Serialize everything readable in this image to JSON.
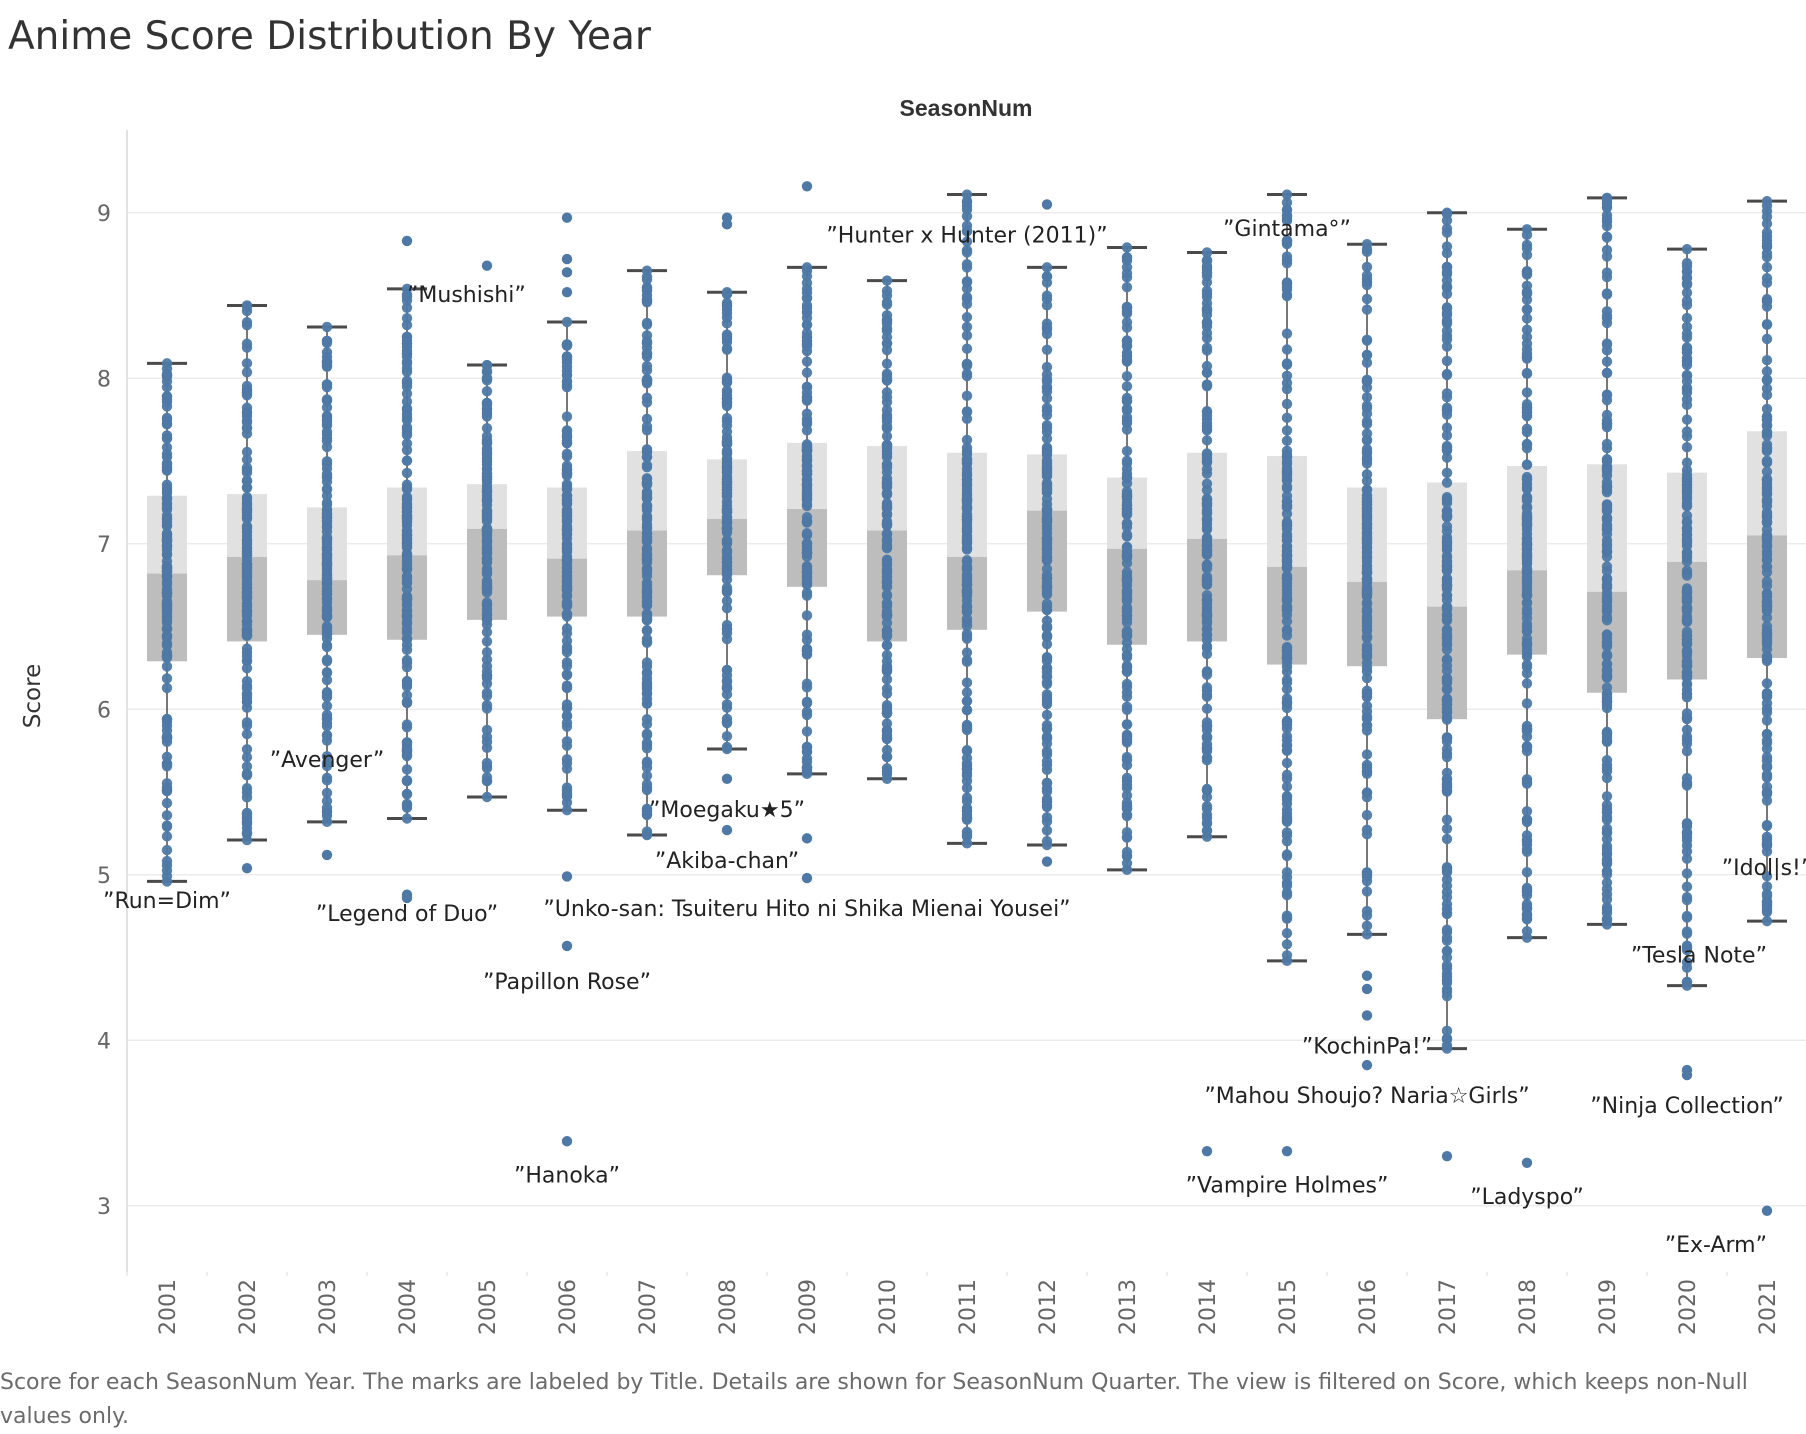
{
  "title": "Anime Score Distribution By Year",
  "caption": "Score for each SeasonNum Year.  The marks are labeled by Title.  Details are shown for SeasonNum Quarter. The view is filtered on Score, which keeps non-Null values only.",
  "colors": {
    "dot": "#4e79a7",
    "box_upper": "#e1e1e1",
    "box_lower": "#bdbdbd",
    "whisker": "#4a4a4a",
    "grid": "#ececec",
    "axis_text": "#666666"
  },
  "chart_data": {
    "type": "box",
    "title": "Anime Score Distribution By Year",
    "column_header": "SeasonNum",
    "ylabel": "Score",
    "ylim": [
      2.6,
      9.5
    ],
    "yticks": [
      3,
      4,
      5,
      6,
      7,
      8,
      9
    ],
    "grid": true,
    "categories": [
      "2001",
      "2002",
      "2003",
      "2004",
      "2005",
      "2006",
      "2007",
      "2008",
      "2009",
      "2010",
      "2011",
      "2012",
      "2013",
      "2014",
      "2015",
      "2016",
      "2017",
      "2018",
      "2019",
      "2020",
      "2021"
    ],
    "boxes": [
      {
        "year": "2001",
        "min": 4.96,
        "q1": 6.29,
        "median": 6.82,
        "q3": 7.29,
        "max": 8.09
      },
      {
        "year": "2002",
        "min": 5.21,
        "q1": 6.41,
        "median": 6.92,
        "q3": 7.3,
        "max": 8.44
      },
      {
        "year": "2003",
        "min": 5.32,
        "q1": 6.45,
        "median": 6.78,
        "q3": 7.22,
        "max": 8.31
      },
      {
        "year": "2004",
        "min": 5.34,
        "q1": 6.42,
        "median": 6.93,
        "q3": 7.34,
        "max": 8.54
      },
      {
        "year": "2005",
        "min": 5.47,
        "q1": 6.54,
        "median": 7.09,
        "q3": 7.36,
        "max": 8.08
      },
      {
        "year": "2006",
        "min": 5.39,
        "q1": 6.56,
        "median": 6.91,
        "q3": 7.34,
        "max": 8.34
      },
      {
        "year": "2007",
        "min": 5.24,
        "q1": 6.56,
        "median": 7.08,
        "q3": 7.56,
        "max": 8.65
      },
      {
        "year": "2008",
        "min": 5.76,
        "q1": 6.81,
        "median": 7.15,
        "q3": 7.51,
        "max": 8.52
      },
      {
        "year": "2009",
        "min": 5.61,
        "q1": 6.74,
        "median": 7.21,
        "q3": 7.61,
        "max": 8.67
      },
      {
        "year": "2010",
        "min": 5.58,
        "q1": 6.41,
        "median": 7.08,
        "q3": 7.59,
        "max": 8.59
      },
      {
        "year": "2011",
        "min": 5.19,
        "q1": 6.48,
        "median": 6.92,
        "q3": 7.55,
        "max": 9.11
      },
      {
        "year": "2012",
        "min": 5.18,
        "q1": 6.59,
        "median": 7.2,
        "q3": 7.54,
        "max": 8.67
      },
      {
        "year": "2013",
        "min": 5.03,
        "q1": 6.39,
        "median": 6.97,
        "q3": 7.4,
        "max": 8.79
      },
      {
        "year": "2014",
        "min": 5.23,
        "q1": 6.41,
        "median": 7.03,
        "q3": 7.55,
        "max": 8.76
      },
      {
        "year": "2015",
        "min": 4.48,
        "q1": 6.27,
        "median": 6.86,
        "q3": 7.53,
        "max": 9.11
      },
      {
        "year": "2016",
        "min": 4.64,
        "q1": 6.26,
        "median": 6.77,
        "q3": 7.34,
        "max": 8.81
      },
      {
        "year": "2017",
        "min": 3.95,
        "q1": 5.94,
        "median": 6.62,
        "q3": 7.37,
        "max": 9.0
      },
      {
        "year": "2018",
        "min": 4.62,
        "q1": 6.33,
        "median": 6.84,
        "q3": 7.47,
        "max": 8.9
      },
      {
        "year": "2019",
        "min": 4.7,
        "q1": 6.1,
        "median": 6.71,
        "q3": 7.48,
        "max": 9.09
      },
      {
        "year": "2020",
        "min": 4.33,
        "q1": 6.18,
        "median": 6.89,
        "q3": 7.43,
        "max": 8.78
      },
      {
        "year": "2021",
        "min": 4.72,
        "q1": 6.31,
        "median": 7.05,
        "q3": 7.68,
        "max": 9.07
      }
    ],
    "outliers": [
      {
        "year": "2002",
        "score": 5.04
      },
      {
        "year": "2003",
        "score": 5.12
      },
      {
        "year": "2004",
        "score": 8.83
      },
      {
        "year": "2004",
        "score": 4.88
      },
      {
        "year": "2004",
        "score": 4.86
      },
      {
        "year": "2005",
        "score": 8.68
      },
      {
        "year": "2006",
        "score": 8.97
      },
      {
        "year": "2006",
        "score": 8.72
      },
      {
        "year": "2006",
        "score": 8.64
      },
      {
        "year": "2006",
        "score": 8.52
      },
      {
        "year": "2006",
        "score": 4.99
      },
      {
        "year": "2006",
        "score": 4.57
      },
      {
        "year": "2006",
        "score": 3.39
      },
      {
        "year": "2008",
        "score": 8.97
      },
      {
        "year": "2008",
        "score": 8.93
      },
      {
        "year": "2008",
        "score": 5.58
      },
      {
        "year": "2008",
        "score": 5.27
      },
      {
        "year": "2009",
        "score": 9.16
      },
      {
        "year": "2009",
        "score": 5.22
      },
      {
        "year": "2009",
        "score": 4.98
      },
      {
        "year": "2012",
        "score": 9.05
      },
      {
        "year": "2012",
        "score": 5.08
      },
      {
        "year": "2014",
        "score": 3.33
      },
      {
        "year": "2015",
        "score": 3.33
      },
      {
        "year": "2016",
        "score": 4.39
      },
      {
        "year": "2016",
        "score": 4.31
      },
      {
        "year": "2016",
        "score": 4.15
      },
      {
        "year": "2016",
        "score": 3.85
      },
      {
        "year": "2017",
        "score": 3.3
      },
      {
        "year": "2018",
        "score": 3.26
      },
      {
        "year": "2020",
        "score": 3.82
      },
      {
        "year": "2020",
        "score": 3.79
      },
      {
        "year": "2021",
        "score": 2.97
      }
    ],
    "annotations": [
      {
        "text": "”Run=Dim”",
        "year": "2001",
        "score": 4.8,
        "anchor": "middle"
      },
      {
        "text": "”Avenger”",
        "year": "2003",
        "score": 5.65,
        "anchor": "middle"
      },
      {
        "text": "”Legend of Duo”",
        "year": "2004",
        "score": 4.72,
        "anchor": "middle"
      },
      {
        "text": "”Mushishi”",
        "year": "2004",
        "score": 8.46,
        "anchor": "start"
      },
      {
        "text": "”Papillon Rose”",
        "year": "2006",
        "score": 4.31,
        "anchor": "middle"
      },
      {
        "text": "”Hanoka”",
        "year": "2006",
        "score": 3.14,
        "anchor": "middle"
      },
      {
        "text": "”Moegaku★5”",
        "year": "2008",
        "score": 5.35,
        "anchor": "middle"
      },
      {
        "text": "”Akiba-chan”",
        "year": "2008",
        "score": 5.04,
        "anchor": "middle"
      },
      {
        "text": "”Unko-san: Tsuiteru Hito ni Shika Mienai Yousei”",
        "year": "2009",
        "score": 4.75,
        "anchor": "middle"
      },
      {
        "text": "”Hunter x Hunter (2011)”",
        "year": "2011",
        "score": 8.82,
        "anchor": "middle"
      },
      {
        "text": "”Gintama°”",
        "year": "2015",
        "score": 8.86,
        "anchor": "middle"
      },
      {
        "text": "”KochinPa!”",
        "year": "2016",
        "score": 3.92,
        "anchor": "middle"
      },
      {
        "text": "”Mahou Shoujo? Naria☆Girls”",
        "year": "2016",
        "score": 3.62,
        "anchor": "middle"
      },
      {
        "text": "”Vampire Holmes”",
        "year": "2015",
        "score": 3.08,
        "anchor": "middle"
      },
      {
        "text": "”Ladyspo”",
        "year": "2018",
        "score": 3.01,
        "anchor": "middle"
      },
      {
        "text": "”Ninja Collection”",
        "year": "2020",
        "score": 3.56,
        "anchor": "middle"
      },
      {
        "text": "”Idol|s!”",
        "year": "2021",
        "score": 5.0,
        "anchor": "middle"
      },
      {
        "text": "”Tesla Note”",
        "year": "2021",
        "score": 4.47,
        "anchor": "end"
      },
      {
        "text": "”Ex-Arm”",
        "year": "2021",
        "score": 2.72,
        "anchor": "end"
      }
    ]
  }
}
